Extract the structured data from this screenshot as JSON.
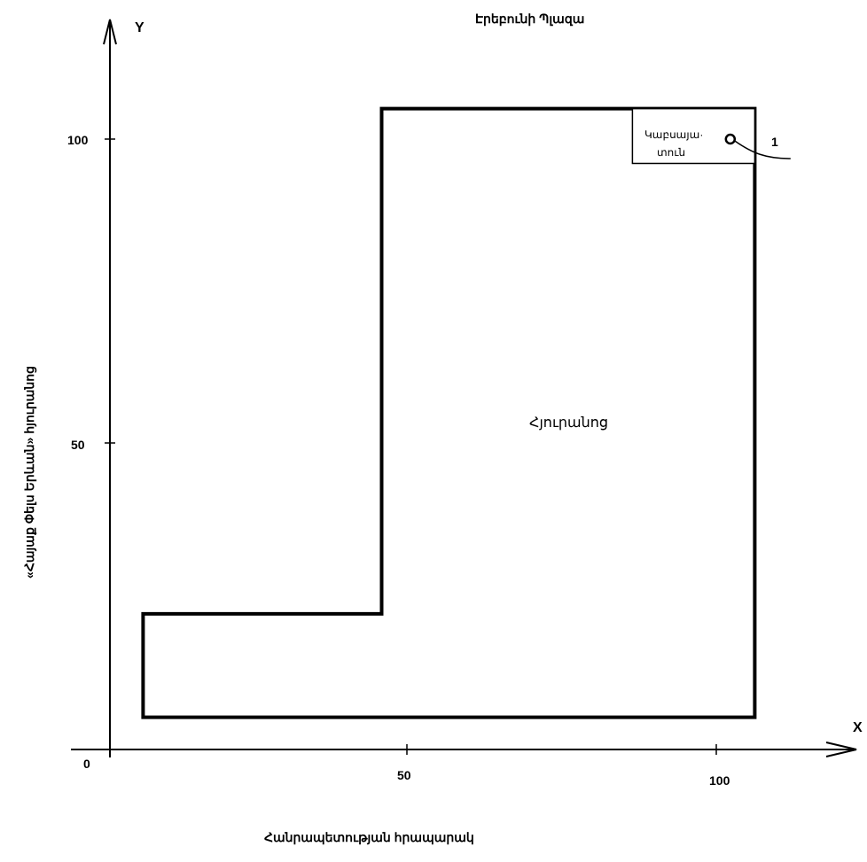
{
  "axes": {
    "x_letter": "X",
    "y_letter": "Y",
    "origin": "0",
    "x_ticks": [
      {
        "value": 50,
        "label": "50"
      },
      {
        "value": 100,
        "label": "100"
      }
    ],
    "y_ticks": [
      {
        "value": 50,
        "label": "50"
      },
      {
        "value": 100,
        "label": "100"
      }
    ]
  },
  "streets": {
    "top": "Էրեբունի Պլազա",
    "bottom": "Հանրապետության հրապարակ",
    "left": "«Հայաք Փելս Երևան» հյուրանոց"
  },
  "building": {
    "outline_points": [
      [
        6,
        5
      ],
      [
        106,
        5
      ],
      [
        106,
        105
      ],
      [
        45,
        105
      ],
      [
        45,
        22
      ],
      [
        6,
        22
      ]
    ],
    "hall_label": "Հյուրանոց"
  },
  "room": {
    "label_line1": "Կաբսայա·",
    "label_line2": "տուն",
    "box": {
      "x0": 86,
      "x1": 106,
      "y0": 96,
      "y1": 105
    }
  },
  "marker": {
    "label": "1",
    "x": 102,
    "y": 100
  }
}
